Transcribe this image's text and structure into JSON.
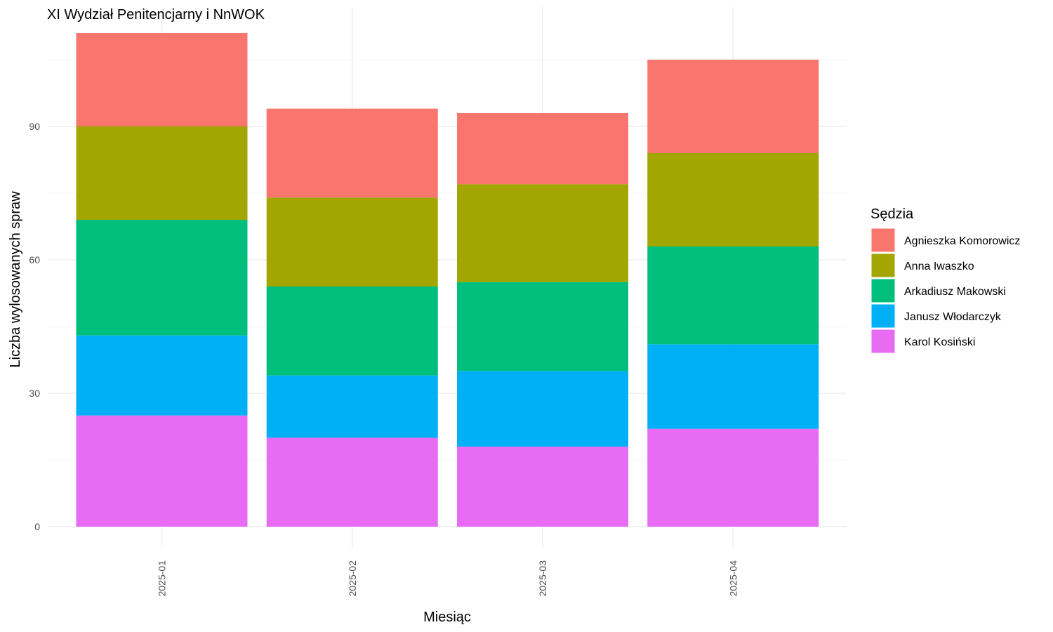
{
  "chart_data": {
    "type": "bar",
    "stacked": true,
    "title": "XI Wydział Penitencjarny i NnWOK",
    "xlabel": "Miesiąc",
    "ylabel": "Liczba wylosowanych spraw",
    "ylim": [
      0,
      111
    ],
    "yticks": [
      0,
      30,
      60,
      90
    ],
    "grid": true,
    "legend": {
      "title": "Sędzia",
      "position": "right"
    },
    "categories": [
      "2025-01",
      "2025-02",
      "2025-03",
      "2025-04"
    ],
    "series": [
      {
        "name": "Karol Kosiński",
        "color": "#E76BF3",
        "values": [
          25,
          20,
          18,
          22
        ]
      },
      {
        "name": "Janusz Włodarczyk",
        "color": "#00B0F6",
        "values": [
          18,
          14,
          17,
          19
        ]
      },
      {
        "name": "Arkadiusz Makowski",
        "color": "#00BF7D",
        "values": [
          26,
          20,
          20,
          22
        ]
      },
      {
        "name": "Anna Iwaszko",
        "color": "#A3A500",
        "values": [
          21,
          20,
          22,
          21
        ]
      },
      {
        "name": "Agnieszka Komorowicz",
        "color": "#F8766D",
        "values": [
          21,
          20,
          16,
          21
        ]
      }
    ]
  }
}
